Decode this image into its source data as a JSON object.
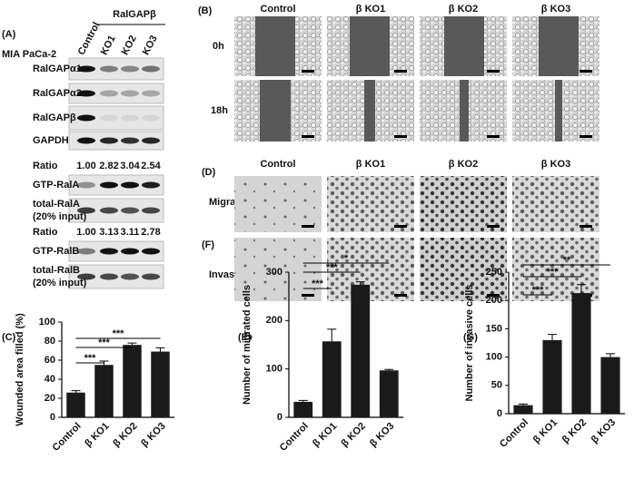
{
  "blot": {
    "label": "(A)",
    "cell_line": "MIA PaCa-2",
    "group": "RalGAPβ",
    "lanes": [
      "Control",
      "KO1",
      "KO2",
      "KO3"
    ],
    "rows": [
      "RalGAPα1",
      "RalGAPα2",
      "RalGAPβ",
      "GAPDH"
    ],
    "rala": {
      "ratio_label": "Ratio",
      "ratios": [
        "1.00",
        "2.82",
        "3.04",
        "2.54"
      ],
      "gtp": "GTP-RalA",
      "total": "total-RalA",
      "input": "(20% input)"
    },
    "ralb": {
      "ratio_label": "Ratio",
      "ratios": [
        "1.00",
        "3.13",
        "3.11",
        "2.78"
      ],
      "gtp": "GTP-RalB",
      "total": "total-RalB",
      "input": "(20% input)"
    }
  },
  "wound": {
    "label": "(B)",
    "columns": [
      "Control",
      "β KO1",
      "β KO2",
      "β KO3"
    ],
    "rows": [
      "0h",
      "18h"
    ]
  },
  "transwell": {
    "labels": [
      "(D)",
      "(F)"
    ],
    "columns": [
      "Control",
      "β KO1",
      "β KO2",
      "β KO3"
    ],
    "rows": [
      "Migration",
      "Invasion"
    ]
  },
  "chart_data": [
    {
      "type": "bar",
      "label": "(C)",
      "ylabel": "Wounded area filled  (%)",
      "categories": [
        "Control",
        "β KO1",
        "β KO2",
        "β KO3"
      ],
      "values": [
        26,
        55,
        76,
        69
      ],
      "errors": [
        2,
        4,
        2,
        4
      ],
      "annotations": [
        "***",
        "***",
        "***"
      ],
      "color": "#1a1a1a",
      "ylim": [
        0,
        100
      ],
      "yticks": [
        0,
        20,
        40,
        60,
        80,
        100
      ]
    },
    {
      "type": "bar",
      "label": "(E)",
      "ylabel": "Number of migrated cells",
      "categories": [
        "Control",
        "β KO1",
        "β KO2",
        "β KO3"
      ],
      "values": [
        32,
        157,
        274,
        97
      ],
      "errors": [
        3,
        25,
        6,
        2
      ],
      "annotations": [
        "***",
        "***",
        "*"
      ],
      "color": "#1a1a1a",
      "ylim": [
        0,
        300
      ],
      "yticks": [
        0,
        100,
        200,
        300
      ]
    },
    {
      "type": "bar",
      "label": "(G)",
      "ylabel": "Number of invasive cells",
      "categories": [
        "Control",
        "β KO1",
        "β KO2",
        "β KO3"
      ],
      "values": [
        15,
        130,
        213,
        100
      ],
      "errors": [
        2,
        10,
        15,
        6
      ],
      "annotations": [
        "***",
        "***",
        "**"
      ],
      "color": "#1a1a1a",
      "ylim": [
        0,
        250
      ],
      "yticks": [
        0,
        50,
        100,
        150,
        200,
        250
      ]
    }
  ]
}
